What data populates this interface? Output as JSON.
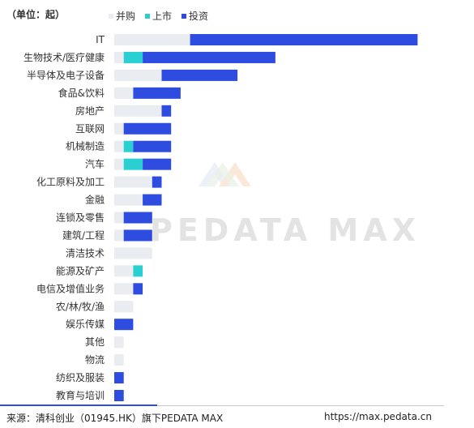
{
  "unit_label": "（单位：起）",
  "legend": [
    {
      "label": "并购",
      "color": "#e9ecf1"
    },
    {
      "label": "上市",
      "color": "#29cfd1"
    },
    {
      "label": "投资",
      "color": "#2e4cdf"
    }
  ],
  "chart_data": {
    "type": "bar",
    "orientation": "horizontal",
    "stacked": true,
    "categories": [
      "IT",
      "生物技术/医疗健康",
      "半导体及电子设备",
      "食品&饮料",
      "房地产",
      "互联网",
      "机械制造",
      "汽车",
      "化工原料及加工",
      "金融",
      "连锁及零售",
      "建筑/工程",
      "清洁技术",
      "能源及矿产",
      "电信及增值业务",
      "农/林/牧/渔",
      "娱乐传媒",
      "其他",
      "物流",
      "纺织及服装",
      "教育与培训"
    ],
    "series": [
      {
        "name": "并购",
        "color": "#e9ecf1",
        "values": [
          8,
          1,
          5,
          2,
          5,
          1,
          1,
          1,
          4,
          3,
          1,
          1,
          4,
          2,
          2,
          2,
          0,
          1,
          1,
          0,
          0
        ]
      },
      {
        "name": "上市",
        "color": "#29cfd1",
        "values": [
          0,
          2,
          0,
          0,
          0,
          0,
          1,
          2,
          0,
          0,
          0,
          0,
          0,
          1,
          0,
          0,
          0,
          0,
          0,
          0,
          0
        ]
      },
      {
        "name": "投资",
        "color": "#2e4cdf",
        "values": [
          24,
          14,
          8,
          5,
          1,
          5,
          4,
          3,
          1,
          2,
          3,
          3,
          0,
          0,
          1,
          0,
          2,
          0,
          0,
          1,
          1
        ]
      }
    ],
    "grid": false
  },
  "watermark": "PEDATA MAX",
  "footer": {
    "source": "来源：清科创业（01945.HK）旗下PEDATA MAX",
    "url": "https://max.pedata.cn"
  }
}
